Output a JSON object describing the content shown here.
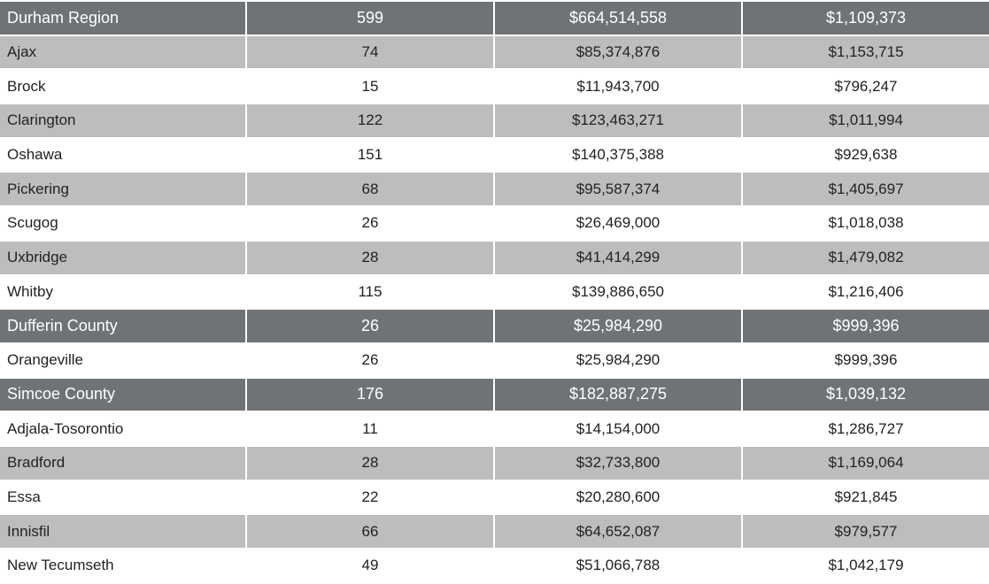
{
  "table": {
    "rows": [
      [
        "Durham Region",
        "599",
        "$664,514,558",
        "$1,109,373"
      ],
      [
        "Ajax",
        "74",
        "$85,374,876",
        "$1,153,715"
      ],
      [
        "Brock",
        "15",
        "$11,943,700",
        "$796,247"
      ],
      [
        "Clarington",
        "122",
        "$123,463,271",
        "$1,011,994"
      ],
      [
        "Oshawa",
        "151",
        "$140,375,388",
        "$929,638"
      ],
      [
        "Pickering",
        "68",
        "$95,587,374",
        "$1,405,697"
      ],
      [
        "Scugog",
        "26",
        "$26,469,000",
        "$1,018,038"
      ],
      [
        "Uxbridge",
        "28",
        "$41,414,299",
        "$1,479,082"
      ],
      [
        "Whitby",
        "115",
        "$139,886,650",
        "$1,216,406"
      ],
      [
        "Dufferin County",
        "26",
        "$25,984,290",
        "$999,396"
      ],
      [
        "Orangeville",
        "26",
        "$25,984,290",
        "$999,396"
      ],
      [
        "Simcoe County",
        "176",
        "$182,887,275",
        "$1,039,132"
      ],
      [
        "Adjala-Tosorontio",
        "11",
        "$14,154,000",
        "$1,286,727"
      ],
      [
        "Bradford",
        "28",
        "$32,733,800",
        "$1,169,064"
      ],
      [
        "Essa",
        "22",
        "$20,280,600",
        "$921,845"
      ],
      [
        "Innisfil",
        "66",
        "$64,652,087",
        "$979,577"
      ],
      [
        "New Tecumseth",
        "49",
        "$51,066,788",
        "$1,042,179"
      ]
    ]
  }
}
